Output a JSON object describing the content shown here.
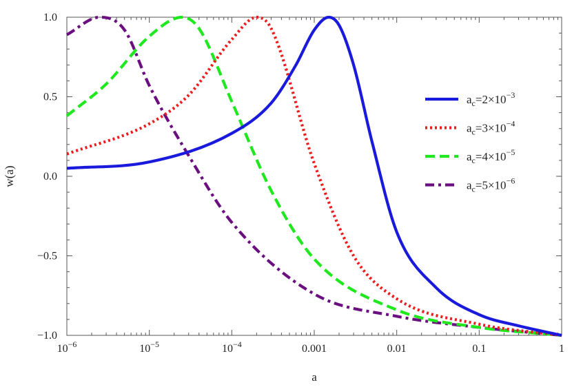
{
  "chart_data": {
    "type": "line",
    "xscale": "log",
    "xlim": [
      1e-06,
      1
    ],
    "ylim": [
      -1.0,
      1.0
    ],
    "xlabel": "a",
    "ylabel": "w(a)",
    "x_ticks": [
      {
        "value": 1e-06,
        "base": "10",
        "exp": "−6"
      },
      {
        "value": 1e-05,
        "base": "10",
        "exp": "−5"
      },
      {
        "value": 0.0001,
        "base": "10",
        "exp": "−4"
      },
      {
        "value": 0.001,
        "label": "0.001"
      },
      {
        "value": 0.01,
        "label": "0.01"
      },
      {
        "value": 0.1,
        "label": "0.1"
      },
      {
        "value": 1,
        "label": "1"
      }
    ],
    "y_ticks": [
      {
        "value": 1.0,
        "label": "1.0"
      },
      {
        "value": 0.5,
        "label": "0.5"
      },
      {
        "value": 0.0,
        "label": "0.0"
      },
      {
        "value": -0.5,
        "label": "−0.5"
      },
      {
        "value": -1.0,
        "label": "−1.0"
      }
    ],
    "legend_placement": "right",
    "series": [
      {
        "name": "a_c=2×10^-3",
        "label_base": "a",
        "label_sub": "c",
        "label_rest": "=2×10",
        "label_exp": "−3",
        "color": "#1a1adc",
        "dash": "solid",
        "x": [
          1e-06,
          1e-05,
          0.0001,
          0.0003,
          0.0006,
          0.001,
          0.0015,
          0.002,
          0.003,
          0.005,
          0.01,
          0.03,
          0.1,
          0.3,
          1
        ],
        "y": [
          0.05,
          0.09,
          0.27,
          0.46,
          0.7,
          0.92,
          1.0,
          0.95,
          0.7,
          0.22,
          -0.35,
          -0.7,
          -0.87,
          -0.94,
          -1.0
        ]
      },
      {
        "name": "a_c=3×10^-4",
        "label_base": "a",
        "label_sub": "c",
        "label_rest": "=3×10",
        "label_exp": "−4",
        "color": "#ee1c1c",
        "dash": "dot",
        "x": [
          1e-06,
          1e-05,
          3e-05,
          0.0001,
          0.0002,
          0.0003,
          0.001,
          0.003,
          0.01,
          0.1,
          1
        ],
        "y": [
          0.14,
          0.33,
          0.51,
          0.86,
          1.0,
          0.93,
          0.08,
          -0.5,
          -0.77,
          -0.93,
          -1.0
        ]
      },
      {
        "name": "a_c=4×10^-5",
        "label_base": "a",
        "label_sub": "c",
        "label_rest": "=4×10",
        "label_exp": "−5",
        "color": "#1fe81f",
        "dash": "dash",
        "x": [
          1e-06,
          3e-06,
          1e-05,
          2.5e-05,
          4e-05,
          0.0001,
          0.0003,
          0.001,
          0.01,
          0.1,
          1
        ],
        "y": [
          0.38,
          0.58,
          0.88,
          1.0,
          0.93,
          0.47,
          -0.09,
          -0.52,
          -0.84,
          -0.95,
          -1.0
        ]
      },
      {
        "name": "a_c=5×10^-6",
        "label_base": "a",
        "label_sub": "c",
        "label_rest": "=5×10",
        "label_exp": "−6",
        "color": "#6b0f80",
        "dash": "dashdot",
        "x": [
          1e-06,
          2.5e-06,
          5e-06,
          1e-05,
          3e-05,
          0.0001,
          0.001,
          0.01,
          0.1,
          1
        ],
        "y": [
          0.89,
          1.0,
          0.92,
          0.57,
          0.13,
          -0.29,
          -0.74,
          -0.88,
          -0.95,
          -1.0
        ]
      }
    ]
  }
}
